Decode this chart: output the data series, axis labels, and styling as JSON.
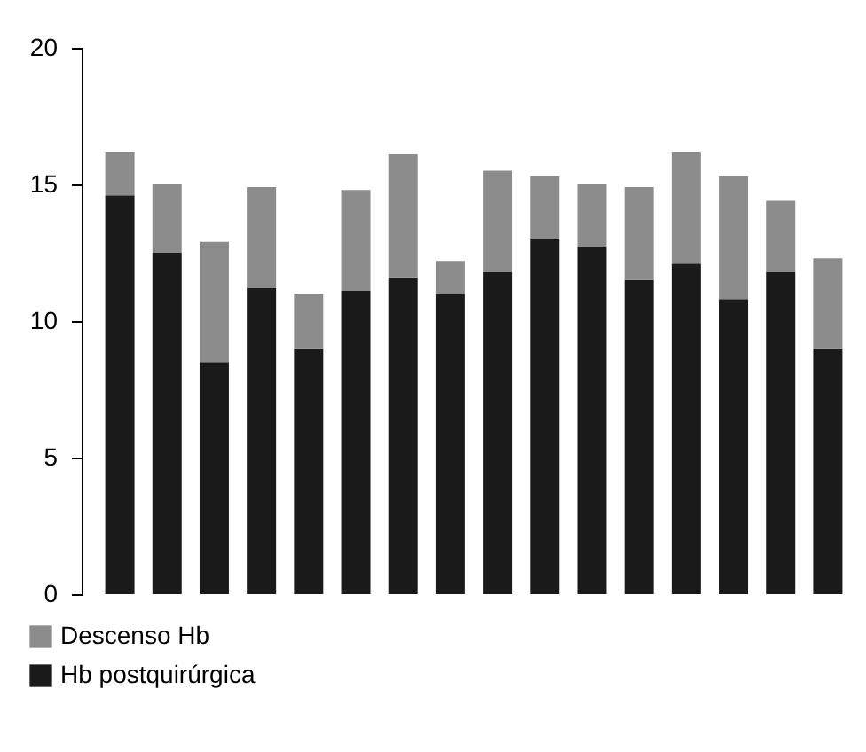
{
  "chart_data": {
    "type": "bar",
    "stacked": true,
    "categories": [
      null,
      null,
      null,
      null,
      null,
      null,
      null,
      null,
      null,
      null,
      null,
      null,
      null,
      null,
      null,
      null
    ],
    "series": [
      {
        "name": "Hb postquirúrgica",
        "color": "#1a1a1a",
        "values": [
          14.6,
          12.5,
          8.5,
          11.2,
          9.0,
          11.1,
          11.6,
          11.0,
          11.8,
          13.0,
          12.7,
          11.5,
          12.1,
          10.8,
          11.8,
          9.0
        ]
      },
      {
        "name": "Descenso Hb",
        "color": "#8c8c8c",
        "values": [
          1.6,
          2.5,
          4.4,
          3.7,
          2.0,
          3.7,
          4.5,
          1.2,
          3.7,
          2.3,
          2.3,
          3.4,
          4.1,
          4.5,
          2.6,
          3.3
        ]
      }
    ],
    "ylim": [
      0,
      20
    ],
    "yticks": [
      0,
      5,
      10,
      15,
      20
    ],
    "grid": false,
    "legend": "bottom",
    "tick_labels": "y"
  }
}
